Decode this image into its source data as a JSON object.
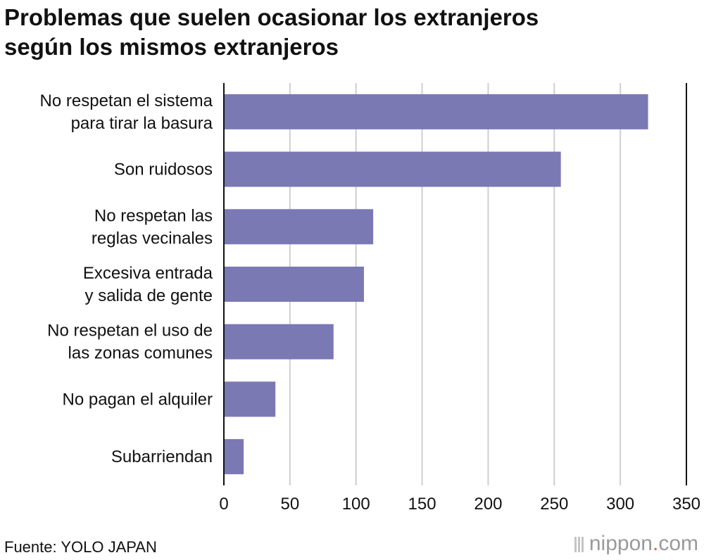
{
  "title_lines": [
    "Problemas que suelen ocasionar los extranjeros",
    "según los mismos extranjeros"
  ],
  "source": "Fuente: YOLO JAPAN",
  "brand": {
    "name": "nippon",
    "dot": ".",
    "suffix": "com"
  },
  "colors": {
    "bar": "#7b79b4",
    "grid": "#cfcfcf",
    "axis": "#111111",
    "accent": "#e05a50"
  },
  "chart_data": {
    "type": "bar",
    "orientation": "horizontal",
    "categories": [
      [
        "No respetan el sistema",
        "para tirar la basura"
      ],
      [
        "Son ruidosos"
      ],
      [
        "No respetan las",
        "reglas vecinales"
      ],
      [
        "Excesiva entrada",
        "y salida de gente"
      ],
      [
        "No respetan el uso de",
        "las zonas comunes"
      ],
      [
        "No pagan el alquiler"
      ],
      [
        "Subarriendan"
      ]
    ],
    "values": [
      321,
      255,
      113,
      106,
      83,
      39,
      15
    ],
    "xlim": [
      0,
      350
    ],
    "xticks": [
      "0",
      "50",
      "100",
      "150",
      "200",
      "250",
      "300",
      "350"
    ],
    "grid": true
  }
}
